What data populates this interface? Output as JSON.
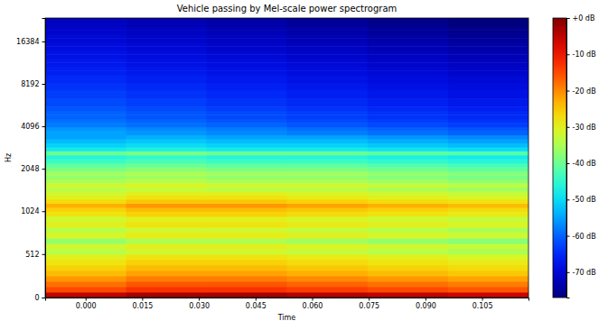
{
  "chart_data": {
    "type": "heatmap",
    "title": "Vehicle passing by Mel-scale power spectrogram",
    "x_label": "Time",
    "y_label": "Hz",
    "log": "y",
    "color": "jet",
    "xlim": [
      -0.0107,
      0.1173
    ],
    "ylim": [
      0,
      24000
    ],
    "xticks": [
      {
        "value": 0,
        "label": "0.000"
      },
      {
        "value": 0.015,
        "label": "0.015"
      },
      {
        "value": 0.03,
        "label": "0.030"
      },
      {
        "value": 0.045,
        "label": "0.045"
      },
      {
        "value": 0.06,
        "label": "0.060"
      },
      {
        "value": 0.075,
        "label": "0.075"
      },
      {
        "value": 0.09,
        "label": "0.090"
      },
      {
        "value": 0.105,
        "label": "0.105"
      }
    ],
    "yticks": [
      0,
      512,
      1024,
      2048,
      4096,
      8192,
      16384
    ],
    "x_edges": [
      -0.0107,
      0.0107,
      0.032,
      0.0533,
      0.0747,
      0.096,
      0.1173
    ],
    "y_edges": [
      0,
      64,
      128,
      191,
      255,
      319,
      383,
      446,
      510,
      574,
      638,
      701,
      765,
      829,
      893,
      957,
      1021,
      1090,
      1165,
      1244,
      1328,
      1419,
      1515,
      1618,
      1728,
      1845,
      1971,
      2105,
      2248,
      2401,
      2564,
      2738,
      2924,
      3123,
      3335,
      3562,
      3804,
      4062,
      4339,
      4633,
      4948,
      5285,
      5644,
      6027,
      6437,
      6875,
      7342,
      7841,
      8374,
      8943,
      9551,
      10200,
      10893,
      11634,
      12425,
      13270,
      14172,
      15136,
      16165,
      17264,
      18438,
      19691,
      21030,
      22460,
      24000
    ],
    "values": [
      [
        -5,
        -3,
        -3,
        -4,
        -5,
        -6
      ],
      [
        -15,
        -13,
        -13,
        -14,
        -15,
        -16
      ],
      [
        -18,
        -16,
        -16,
        -17,
        -18,
        -19
      ],
      [
        -21,
        -19,
        -19,
        -20,
        -21,
        -22
      ],
      [
        -24,
        -22,
        -22,
        -23,
        -24,
        -25
      ],
      [
        -26,
        -24,
        -24,
        -25,
        -26,
        -27
      ],
      [
        -28,
        -26,
        -26,
        -27,
        -28,
        -29
      ],
      [
        -30,
        -28,
        -28,
        -29,
        -30,
        -31
      ],
      [
        -34,
        -32,
        -32,
        -33,
        -34,
        -35
      ],
      [
        -32,
        -30,
        -30,
        -31,
        -32,
        -33
      ],
      [
        -37,
        -35,
        -35,
        -36,
        -37,
        -38
      ],
      [
        -31,
        -29,
        -29,
        -30,
        -31,
        -32
      ],
      [
        -34,
        -32,
        -32,
        -33,
        -34,
        -35
      ],
      [
        -30,
        -28,
        -28,
        -29,
        -30,
        -31
      ],
      [
        -32,
        -30,
        -30,
        -31,
        -32,
        -33
      ],
      [
        -28,
        -26,
        -26,
        -27,
        -28,
        -29
      ],
      [
        -26,
        -24,
        -24,
        -25,
        -26,
        -27
      ],
      [
        -23,
        -21,
        -21,
        -22,
        -23,
        -24
      ],
      [
        -27,
        -25,
        -25,
        -26,
        -27,
        -28
      ],
      [
        -30,
        -28,
        -28,
        -29,
        -30,
        -31
      ],
      [
        -32,
        -30,
        -30,
        -31,
        -32,
        -33
      ],
      [
        -34,
        -33,
        -34,
        -34,
        -35,
        -36
      ],
      [
        -32,
        -31,
        -32,
        -32,
        -33,
        -34
      ],
      [
        -35,
        -34,
        -35,
        -35,
        -36,
        -37
      ],
      [
        -37,
        -36,
        -37,
        -37,
        -38,
        -39
      ],
      [
        -36,
        -35,
        -36,
        -36,
        -37,
        -38
      ],
      [
        -39,
        -38,
        -39,
        -39,
        -40,
        -41
      ],
      [
        -41,
        -40,
        -41,
        -41,
        -42,
        -43
      ],
      [
        -44,
        -43,
        -44,
        -44,
        -45,
        -46
      ],
      [
        -46,
        -45,
        -46,
        -46,
        -47,
        -48
      ],
      [
        -40,
        -39,
        -40,
        -40,
        -41,
        -42
      ],
      [
        -48,
        -47,
        -48,
        -48,
        -49,
        -50
      ],
      [
        -51,
        -50,
        -51,
        -51,
        -52,
        -53
      ],
      [
        -53,
        -52,
        -53,
        -53,
        -54,
        -55
      ],
      [
        -55,
        -54,
        -55,
        -55,
        -56,
        -57
      ],
      [
        -55,
        -56,
        -57,
        -58,
        -59,
        -60
      ],
      [
        -56,
        -57,
        -58,
        -59,
        -60,
        -61
      ],
      [
        -58,
        -59,
        -60,
        -61,
        -62,
        -63
      ],
      [
        -59,
        -60,
        -61,
        -62,
        -63,
        -64
      ],
      [
        -60,
        -61,
        -62,
        -63,
        -64,
        -65
      ],
      [
        -60,
        -61,
        -62,
        -63,
        -64,
        -65
      ],
      [
        -61,
        -62,
        -63,
        -64,
        -65,
        -66
      ],
      [
        -62,
        -63,
        -64,
        -65,
        -66,
        -67
      ],
      [
        -62,
        -63,
        -64,
        -65,
        -66,
        -67
      ],
      [
        -63,
        -64,
        -65,
        -66,
        -67,
        -68
      ],
      [
        -63,
        -64,
        -65,
        -66,
        -67,
        -68
      ],
      [
        -64,
        -65,
        -66,
        -67,
        -68,
        -69
      ],
      [
        -64,
        -65,
        -66,
        -67,
        -68,
        -69
      ],
      [
        -65,
        -66,
        -67,
        -68,
        -69,
        -70
      ],
      [
        -65,
        -66,
        -67,
        -68,
        -69,
        -70
      ],
      [
        -66,
        -67,
        -68,
        -69,
        -70,
        -71
      ],
      [
        -66,
        -67,
        -68,
        -69,
        -70,
        -71
      ],
      [
        -67,
        -68,
        -69,
        -70,
        -71,
        -72
      ],
      [
        -67,
        -68,
        -69,
        -70,
        -71,
        -72
      ],
      [
        -68,
        -69,
        -70,
        -71,
        -72,
        -73
      ],
      [
        -68,
        -69,
        -70,
        -71,
        -72,
        -73
      ],
      [
        -69,
        -70,
        -71,
        -72,
        -73,
        -74
      ],
      [
        -69,
        -70,
        -71,
        -72,
        -73,
        -74
      ],
      [
        -70,
        -71,
        -72,
        -73,
        -74,
        -75
      ],
      [
        -70,
        -71,
        -72,
        -73,
        -74,
        -75
      ],
      [
        -71,
        -72,
        -73,
        -74,
        -75,
        -76
      ],
      [
        -71,
        -72,
        -73,
        -74,
        -75,
        -76
      ],
      [
        -72,
        -73,
        -74,
        -75,
        -76,
        -77
      ],
      [
        -72,
        -73,
        -74,
        -75,
        -76,
        -77
      ]
    ],
    "colorbar": {
      "range": [
        -77,
        0
      ],
      "ticks": [
        {
          "value": 0,
          "label": "+0 dB"
        },
        {
          "value": -10,
          "label": "-10 dB"
        },
        {
          "value": -20,
          "label": "-20 dB"
        },
        {
          "value": -30,
          "label": "-30 dB"
        },
        {
          "value": -40,
          "label": "-40 dB"
        },
        {
          "value": -50,
          "label": "-50 dB"
        },
        {
          "value": -60,
          "label": "-60 dB"
        },
        {
          "value": -70,
          "label": "-70 dB"
        }
      ]
    }
  }
}
